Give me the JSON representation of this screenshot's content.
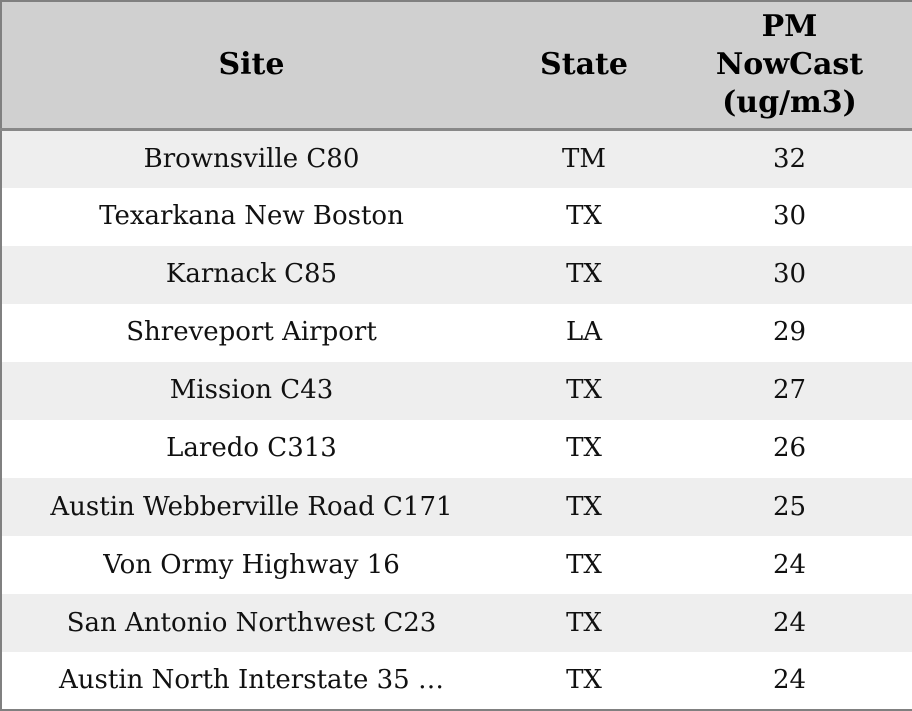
{
  "table": {
    "columns": [
      {
        "id": "site",
        "label": "Site"
      },
      {
        "id": "state",
        "label": "State"
      },
      {
        "id": "pm_nowcast",
        "label": "PM NowCast (ug/m3)"
      }
    ],
    "rows": [
      {
        "site": "Brownsville C80",
        "state": "TM",
        "pm_nowcast": "32"
      },
      {
        "site": "Texarkana New Boston",
        "state": "TX",
        "pm_nowcast": "30"
      },
      {
        "site": "Karnack C85",
        "state": "TX",
        "pm_nowcast": "30"
      },
      {
        "site": "Shreveport Airport",
        "state": "LA",
        "pm_nowcast": "29"
      },
      {
        "site": "Mission C43",
        "state": "TX",
        "pm_nowcast": "27"
      },
      {
        "site": "Laredo C313",
        "state": "TX",
        "pm_nowcast": "26"
      },
      {
        "site": "Austin Webberville Road C171",
        "state": "TX",
        "pm_nowcast": "25"
      },
      {
        "site": "Von Ormy Highway 16",
        "state": "TX",
        "pm_nowcast": "24"
      },
      {
        "site": "San Antonio Northwest C23",
        "state": "TX",
        "pm_nowcast": "24"
      },
      {
        "site": "Austin North Interstate 35 …",
        "state": "TX",
        "pm_nowcast": "24"
      }
    ]
  },
  "colors": {
    "header_bg": "#d0d0d0",
    "header_separator": "#888888",
    "outer_border": "#808080",
    "row_alt_bg": "#eeeeee",
    "row_bg": "#ffffff",
    "header_text": "#000000",
    "body_text": "#111111"
  },
  "chart_data": {
    "type": "table",
    "columns": [
      "Site",
      "State",
      "PM NowCast (ug/m3)"
    ],
    "rows": [
      [
        "Brownsville C80",
        "TM",
        32
      ],
      [
        "Texarkana New Boston",
        "TX",
        30
      ],
      [
        "Karnack C85",
        "TX",
        30
      ],
      [
        "Shreveport Airport",
        "LA",
        29
      ],
      [
        "Mission C43",
        "TX",
        27
      ],
      [
        "Laredo C313",
        "TX",
        26
      ],
      [
        "Austin Webberville Road C171",
        "TX",
        25
      ],
      [
        "Von Ormy Highway 16",
        "TX",
        24
      ],
      [
        "San Antonio Northwest C23",
        "TX",
        24
      ],
      [
        "Austin North Interstate 35 …",
        "TX",
        24
      ]
    ],
    "layout_hints": {
      "header_rows": 1,
      "zebra_striping": true,
      "first_body_row_shaded": true,
      "all_cells_centered": true
    }
  }
}
